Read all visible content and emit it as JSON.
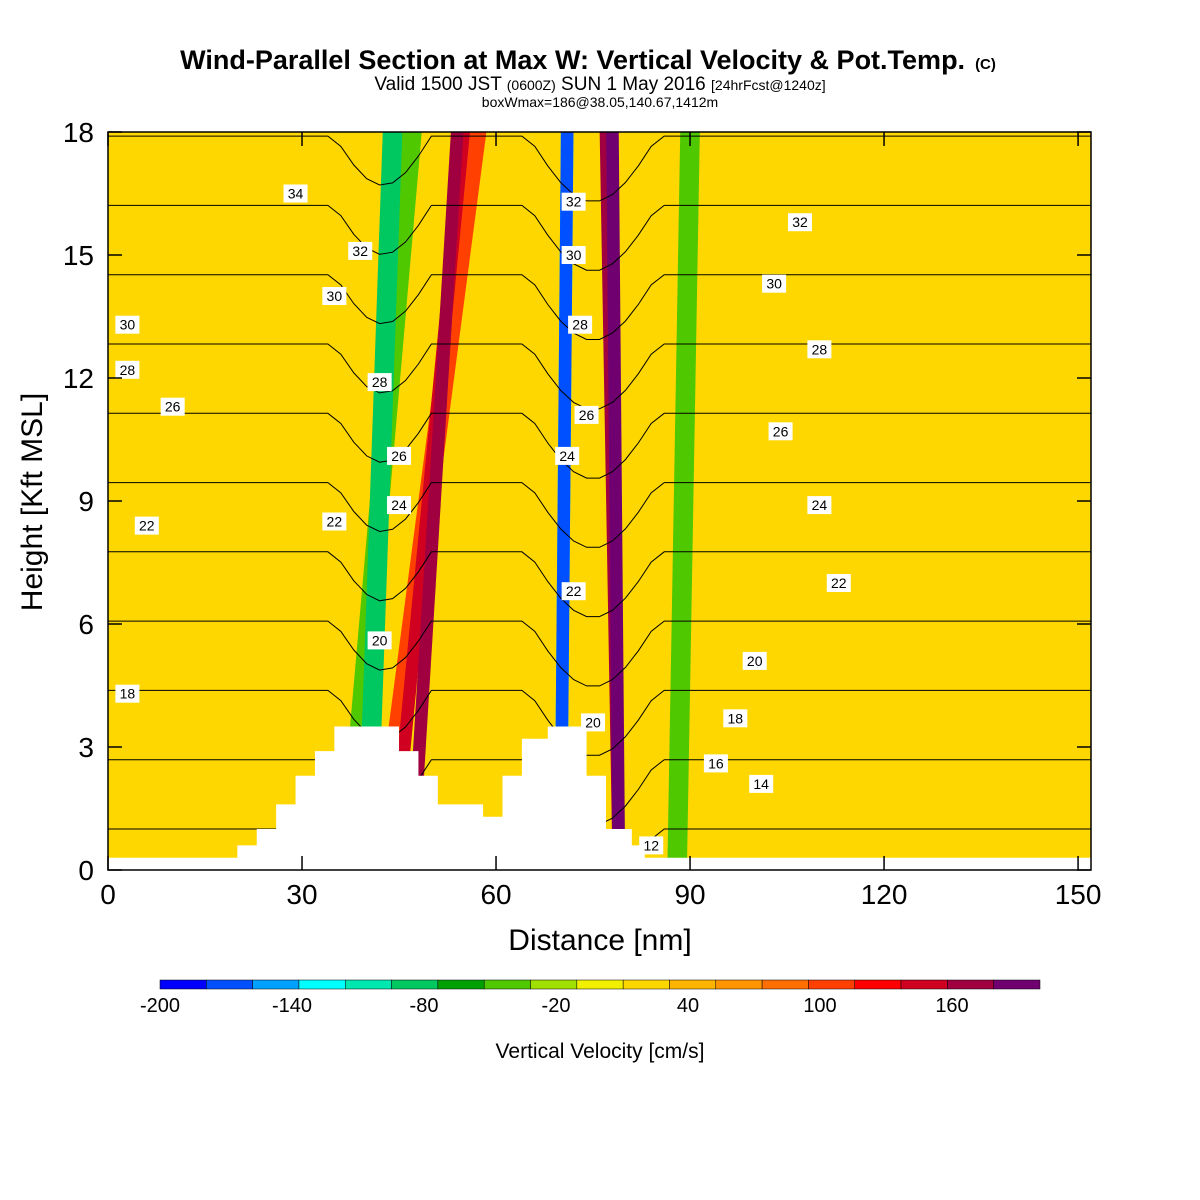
{
  "title": "Wind-Parallel Section at Max W: Vertical Velocity & Pot.Temp.",
  "title_mark": "(C)",
  "subtitle_parts": [
    "Valid 1500 JST ",
    "(0600Z)",
    " SUN 1 May 2016 ",
    "[24hrFcst@1240z]"
  ],
  "note": "boxWmax=186@38.05,140.67,1412m",
  "chart_data": {
    "type": "heatmap",
    "description_fields": "filled contours of vertical velocity with potential temperature contour lines over terrain",
    "xlabel": "Distance [nm]",
    "ylabel": "Height [Kft MSL]",
    "xlim": [
      0,
      152
    ],
    "ylim": [
      0,
      18
    ],
    "x_ticks": [
      0,
      30,
      60,
      90,
      120,
      150
    ],
    "y_ticks": [
      0,
      3,
      6,
      9,
      12,
      15,
      18
    ],
    "colorbar": {
      "title": "Vertical Velocity [cm/s]",
      "levels": [
        -200,
        -180,
        -160,
        -140,
        -120,
        -100,
        -80,
        -60,
        -40,
        -20,
        0,
        20,
        40,
        60,
        80,
        100,
        120,
        140,
        160,
        180
      ],
      "tick_labels": [
        "-200",
        "-140",
        "-80",
        "-20",
        "40",
        "100",
        "160"
      ],
      "colors": [
        "#0000ff",
        "#0050ff",
        "#00a0ff",
        "#00ffff",
        "#00e8b0",
        "#00c860",
        "#00a000",
        "#50c800",
        "#a0e000",
        "#f0f000",
        "#ffd700",
        "#ffb400",
        "#ff9600",
        "#ff6e00",
        "#ff4000",
        "#ff0000",
        "#d00020",
        "#a00040",
        "#700070"
      ]
    },
    "background_fill": "#ffd700",
    "bands": [
      {
        "x_bottom": 37,
        "x_top": 47,
        "value": -60
      },
      {
        "x_bottom": 40,
        "x_top": 44,
        "value": -100
      },
      {
        "x_bottom": 42,
        "x_top": 57,
        "value": 80
      },
      {
        "x_bottom": 44,
        "x_top": 55,
        "value": 120
      },
      {
        "x_bottom": 47,
        "x_top": 54,
        "value": 140
      },
      {
        "x_bottom": 70,
        "x_top": 71,
        "value": -130
      },
      {
        "x_bottom": 70,
        "x_top": 71,
        "value": -180
      },
      {
        "x_bottom": 79,
        "x_top": 77,
        "value": 140
      },
      {
        "x_bottom": 79,
        "x_top": 78,
        "value": 180
      },
      {
        "x_bottom": 88,
        "x_top": 90,
        "value": -60
      }
    ],
    "terrain_top_kft": [
      {
        "x": 0,
        "h": 0.3
      },
      {
        "x": 19,
        "h": 0.3
      },
      {
        "x": 20,
        "h": 0.6
      },
      {
        "x": 23,
        "h": 1.0
      },
      {
        "x": 26,
        "h": 1.6
      },
      {
        "x": 29,
        "h": 2.3
      },
      {
        "x": 32,
        "h": 2.9
      },
      {
        "x": 35,
        "h": 3.5
      },
      {
        "x": 45,
        "h": 2.9
      },
      {
        "x": 48,
        "h": 2.3
      },
      {
        "x": 51,
        "h": 1.6
      },
      {
        "x": 58,
        "h": 1.3
      },
      {
        "x": 61,
        "h": 2.3
      },
      {
        "x": 64,
        "h": 3.2
      },
      {
        "x": 68,
        "h": 3.5
      },
      {
        "x": 74,
        "h": 2.3
      },
      {
        "x": 77,
        "h": 1.0
      },
      {
        "x": 81,
        "h": 0.6
      },
      {
        "x": 83,
        "h": 0.3
      },
      {
        "x": 152,
        "h": 0.3
      }
    ],
    "theta_contour_levels": [
      12,
      14,
      16,
      18,
      20,
      22,
      24,
      26,
      28,
      30,
      32,
      34
    ],
    "theta_labels": [
      {
        "text": "34",
        "x": 29,
        "y": 16.5
      },
      {
        "text": "32",
        "x": 39,
        "y": 15.1
      },
      {
        "text": "30",
        "x": 35,
        "y": 14.0
      },
      {
        "text": "30",
        "x": 3,
        "y": 13.3
      },
      {
        "text": "28",
        "x": 3,
        "y": 12.2
      },
      {
        "text": "26",
        "x": 10,
        "y": 11.3
      },
      {
        "text": "28",
        "x": 42,
        "y": 11.9
      },
      {
        "text": "26",
        "x": 45,
        "y": 10.1
      },
      {
        "text": "24",
        "x": 45,
        "y": 8.9
      },
      {
        "text": "22",
        "x": 6,
        "y": 8.4
      },
      {
        "text": "22",
        "x": 35,
        "y": 8.5
      },
      {
        "text": "20",
        "x": 42,
        "y": 5.6
      },
      {
        "text": "18",
        "x": 3,
        "y": 4.3
      },
      {
        "text": "32",
        "x": 72,
        "y": 16.3
      },
      {
        "text": "30",
        "x": 72,
        "y": 15.0
      },
      {
        "text": "28",
        "x": 73,
        "y": 13.3
      },
      {
        "text": "26",
        "x": 74,
        "y": 11.1
      },
      {
        "text": "24",
        "x": 71,
        "y": 10.1
      },
      {
        "text": "22",
        "x": 72,
        "y": 6.8
      },
      {
        "text": "20",
        "x": 75,
        "y": 3.6
      },
      {
        "text": "12",
        "x": 84,
        "y": 0.6
      },
      {
        "text": "32",
        "x": 107,
        "y": 15.8
      },
      {
        "text": "30",
        "x": 103,
        "y": 14.3
      },
      {
        "text": "28",
        "x": 110,
        "y": 12.7
      },
      {
        "text": "26",
        "x": 104,
        "y": 10.7
      },
      {
        "text": "24",
        "x": 110,
        "y": 8.9
      },
      {
        "text": "22",
        "x": 113,
        "y": 7.0
      },
      {
        "text": "20",
        "x": 100,
        "y": 5.1
      },
      {
        "text": "18",
        "x": 97,
        "y": 3.7
      },
      {
        "text": "16",
        "x": 94,
        "y": 2.6
      },
      {
        "text": "14",
        "x": 101,
        "y": 2.1
      }
    ]
  }
}
